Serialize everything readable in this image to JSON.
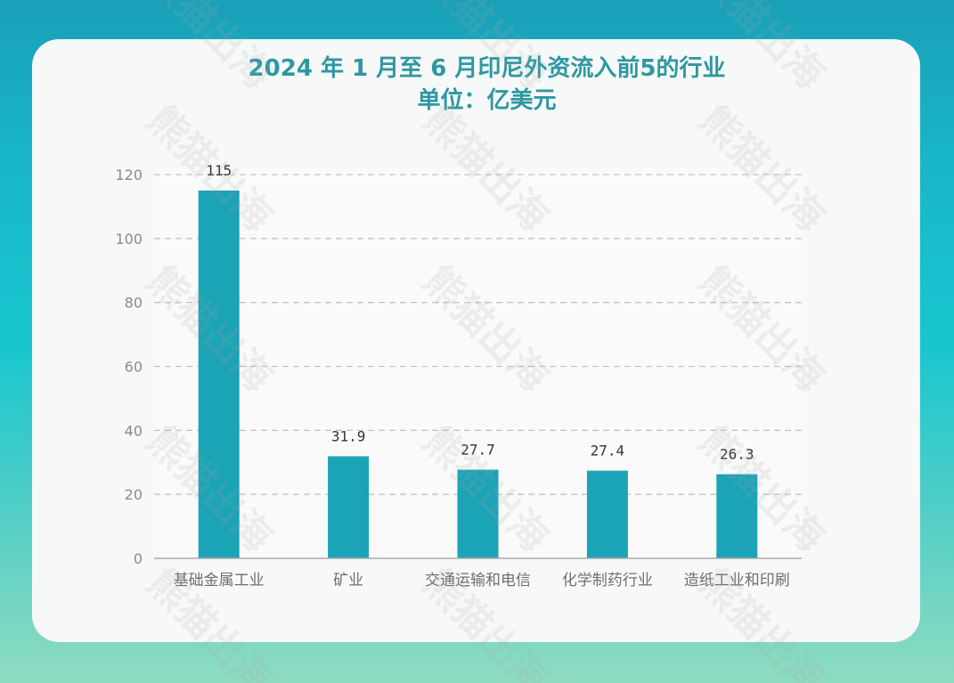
{
  "chart_data": {
    "type": "bar",
    "title": "2024 年 1 月至 6 月印尼外资流入前5的行业",
    "subtitle": "单位：亿美元",
    "categories": [
      "基础金属工业",
      "矿业",
      "交通运输和电信",
      "化学制药行业",
      "造纸工业和印刷"
    ],
    "values": [
      115,
      31.9,
      27.7,
      27.4,
      26.3
    ],
    "value_labels": [
      "115",
      "31.9",
      "27.7",
      "27.4",
      "26.3"
    ],
    "ylim": [
      0,
      120
    ],
    "yticks": [
      "0",
      "20",
      "40",
      "60",
      "80",
      "100",
      "120"
    ],
    "xlabel": "",
    "ylabel": "",
    "grid": true,
    "bar_color": "#1ba3b6"
  },
  "watermark": "熊猫出海",
  "colors": {
    "title": "#2d98a2",
    "card_bg": "#f7f8f8",
    "grid": "#c4c4c4",
    "tick_text": "#8a8a8a"
  }
}
